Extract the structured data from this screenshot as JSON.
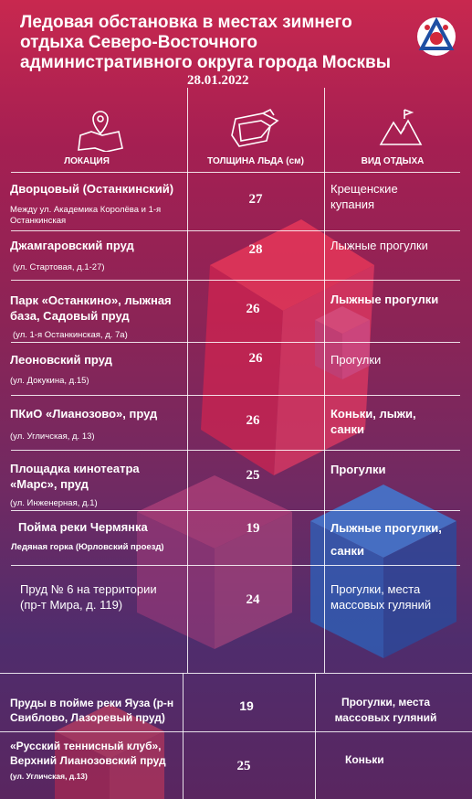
{
  "title": "Ледовая обстановка в местах зимнего отдыха Северо-Восточного административного округа города Москвы",
  "date": "28.01.2022",
  "logo_icon": "moscow-emblem-icon",
  "columns": {
    "location": "ЛОКАЦИЯ",
    "thickness": "ТОЛЩИНА ЛЬДА (см)",
    "activity": "ВИД ОТДЫХА"
  },
  "rows": [
    {
      "name": "Дворцовый (Останкинский)",
      "address": "Между ул. Академика Королёва и 1-я Останкинская",
      "thickness": "27",
      "activity": "Крещенские купания"
    },
    {
      "name": "Джамгаровский пруд",
      "address": "(ул. Стартовая, д.1-27)",
      "thickness": "28",
      "activity": "Лыжные прогулки"
    },
    {
      "name": "Парк «Останкино», лыжная база, Садовый пруд",
      "address": "(ул. 1-я Останкинская, д. 7а)",
      "thickness": "26",
      "activity": "Лыжные прогулки"
    },
    {
      "name": "Леоновский пруд",
      "address": "(ул. Докукина, д.15)",
      "thickness": "26",
      "activity": "Прогулки"
    },
    {
      "name": "ПКиО «Лианозово», пруд",
      "address": "(ул. Угличская, д. 13)",
      "thickness": "26",
      "activity": "Коньки, лыжи, санки"
    },
    {
      "name": "Площадка кинотеатра «Марс», пруд",
      "address": "(ул. Инженерная, д.1)",
      "thickness": "25",
      "activity": "Прогулки"
    },
    {
      "name": "Пойма реки Чермянка",
      "address": "Ледяная горка (Юрловский проезд)",
      "thickness": "19",
      "activity": "Лыжные прогулки,",
      "activity2": "санки"
    },
    {
      "name": "Пруд № 6 на территории",
      "address": "(пр-т Мира, д. 119)",
      "thickness": "24",
      "activity": "Прогулки, места массовых гуляний"
    },
    {
      "name": "Пруды в пойме реки Яуза (р-н Свиблово, Лазоревый пруд)",
      "thickness": "19",
      "activity": "Прогулки, места массовых гуляний"
    },
    {
      "name": "«Русский теннисный клуб», Верхний Лианозовский пруд",
      "address": "(ул. Угличская, д.13)",
      "thickness": "25",
      "activity": "Коньки"
    }
  ]
}
